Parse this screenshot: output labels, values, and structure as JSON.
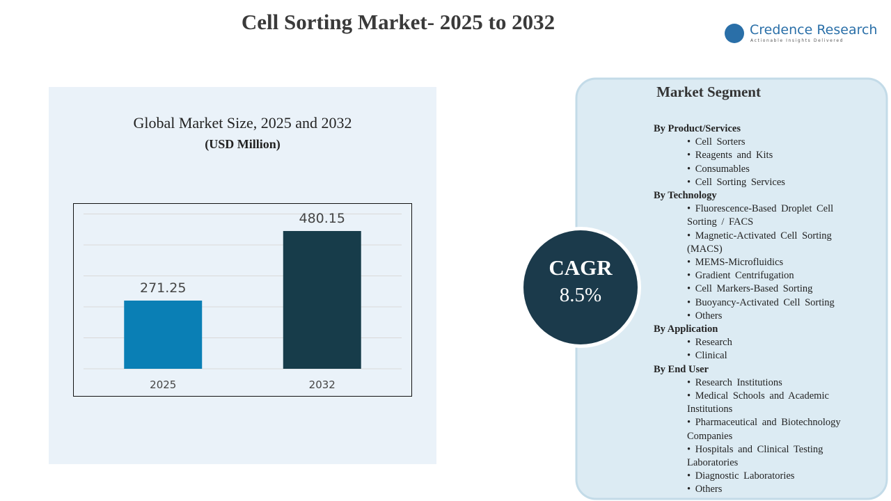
{
  "header": {
    "title": "Cell Sorting Market- 2025 to 2032",
    "logo_name": "Credence Research",
    "logo_tagline": "Actionable Insights Delivered"
  },
  "chart_data": {
    "type": "bar",
    "title": "Global Market Size, 2025 and 2032",
    "subtitle": "(USD Million)",
    "categories": [
      "2025",
      "2032"
    ],
    "values": [
      271.25,
      480.15
    ],
    "colors": [
      "#0a7fb5",
      "#173c4a"
    ],
    "ylim": [
      66.5,
      531.3
    ],
    "grid": true
  },
  "cagr": {
    "label": "CAGR",
    "value": "8.5%"
  },
  "segments": {
    "title": "Market Segment",
    "groups": [
      {
        "heading": "By Product/Services",
        "items": [
          "Cell Sorters",
          "Reagents and Kits",
          "Consumables",
          "Cell Sorting Services"
        ]
      },
      {
        "heading": "By Technology",
        "items": [
          "Fluorescence-Based Droplet Cell Sorting / FACS",
          "Magnetic-Activated Cell Sorting (MACS)",
          "MEMS-Microfluidics",
          "Gradient Centrifugation",
          "Cell Markers-Based Sorting",
          "Buoyancy-Activated Cell Sorting",
          "Others"
        ]
      },
      {
        "heading": "By Application",
        "items": [
          "Research",
          "Clinical"
        ]
      },
      {
        "heading": "By End User",
        "items": [
          "Research Institutions",
          "Medical Schools and Academic Institutions",
          "Pharmaceutical and Biotechnology Companies",
          "Hospitals and Clinical Testing Laboratories",
          "Diagnostic Laboratories",
          "Others"
        ]
      }
    ]
  }
}
